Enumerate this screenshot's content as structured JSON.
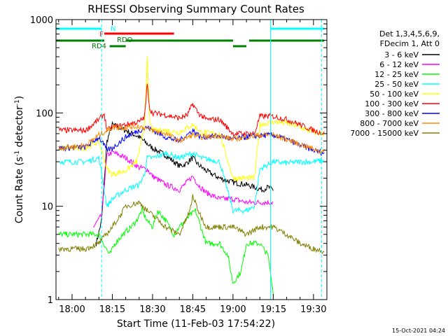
{
  "chart_data": {
    "type": "line",
    "title": "RHESSI Observing Summary Count Rates",
    "xlabel": "Start Time (11-Feb-03 17:54:22)",
    "ylabel_main": "Count Rate (s",
    "ylabel_sup1": "-1",
    "ylabel_mid": " detector",
    "ylabel_sup2": "-1",
    "ylabel_end": ")",
    "yscale": "log",
    "xlim": [
      -6,
      95
    ],
    "ylim": [
      1,
      1000
    ],
    "x_unit": "minutes after 18:00 UT",
    "x_ticks": [
      {
        "x": 0,
        "label": "18:00"
      },
      {
        "x": 15,
        "label": "18:15"
      },
      {
        "x": 30,
        "label": "18:30"
      },
      {
        "x": 45,
        "label": "18:45"
      },
      {
        "x": 60,
        "label": "19:00"
      },
      {
        "x": 75,
        "label": "19:15"
      },
      {
        "x": 90,
        "label": "19:30"
      }
    ],
    "y_ticks": [
      {
        "y": 1,
        "label": "1"
      },
      {
        "y": 10,
        "label": "10"
      },
      {
        "y": 100,
        "label": "100"
      },
      {
        "y": 1000,
        "label": "1000"
      }
    ],
    "legend_position": "right",
    "legend_header": [
      "Det 1,3,4,5,6,9,",
      "FDecim 1, Att 0"
    ],
    "series": [
      {
        "name": "3 - 6 keV",
        "color": "#000000",
        "points": [
          [
            9,
            4
          ],
          [
            11,
            7
          ],
          [
            13,
            50
          ],
          [
            15,
            75
          ],
          [
            20,
            65
          ],
          [
            25,
            55
          ],
          [
            30,
            42
          ],
          [
            35,
            35
          ],
          [
            40,
            27
          ],
          [
            42,
            28
          ],
          [
            45,
            33
          ],
          [
            47,
            28
          ],
          [
            50,
            24
          ],
          [
            55,
            20
          ],
          [
            60,
            18
          ],
          [
            65,
            17
          ],
          [
            68,
            16
          ],
          [
            71,
            15
          ],
          [
            73,
            16
          ],
          [
            75,
            15
          ]
        ]
      },
      {
        "name": "6 - 12 keV",
        "color": "#ff00ff",
        "points": [
          [
            8,
            6
          ],
          [
            11,
            8
          ],
          [
            13,
            35
          ],
          [
            15,
            38
          ],
          [
            20,
            33
          ],
          [
            25,
            26
          ],
          [
            28,
            25
          ],
          [
            30,
            21
          ],
          [
            35,
            17
          ],
          [
            40,
            15
          ],
          [
            45,
            21
          ],
          [
            47,
            17
          ],
          [
            50,
            14
          ],
          [
            55,
            12
          ],
          [
            60,
            12
          ],
          [
            65,
            11
          ],
          [
            70,
            11
          ],
          [
            75,
            11
          ]
        ]
      },
      {
        "name": "12 - 25 keV",
        "color": "#00ff00",
        "points": [
          [
            -5,
            5
          ],
          [
            5,
            5
          ],
          [
            10,
            5
          ],
          [
            14,
            3
          ],
          [
            16,
            4
          ],
          [
            19,
            5
          ],
          [
            22,
            6
          ],
          [
            24,
            7
          ],
          [
            26,
            9
          ],
          [
            28,
            7
          ],
          [
            30,
            6
          ],
          [
            32,
            9
          ],
          [
            35,
            7
          ],
          [
            38,
            5
          ],
          [
            40,
            6
          ],
          [
            44,
            8
          ],
          [
            46,
            9
          ],
          [
            48,
            6
          ],
          [
            50,
            4
          ],
          [
            55,
            4
          ],
          [
            58,
            3
          ],
          [
            60,
            1.5
          ],
          [
            63,
            2
          ],
          [
            65,
            4
          ],
          [
            70,
            4
          ],
          [
            73,
            3
          ],
          [
            75,
            1.2
          ]
        ]
      },
      {
        "name": "25 - 50 keV",
        "color": "#00ffff",
        "points": [
          [
            -5,
            30
          ],
          [
            5,
            30
          ],
          [
            10,
            33
          ],
          [
            13,
            10
          ],
          [
            15,
            12
          ],
          [
            20,
            15
          ],
          [
            25,
            17
          ],
          [
            27,
            22
          ],
          [
            28,
            33
          ],
          [
            30,
            33
          ],
          [
            35,
            37
          ],
          [
            40,
            33
          ],
          [
            45,
            37
          ],
          [
            48,
            33
          ],
          [
            55,
            30
          ],
          [
            60,
            9
          ],
          [
            65,
            9
          ],
          [
            68,
            10
          ],
          [
            70,
            25
          ],
          [
            75,
            30
          ],
          [
            80,
            29
          ],
          [
            85,
            30
          ],
          [
            90,
            30
          ],
          [
            94,
            31
          ]
        ]
      },
      {
        "name": "50 - 100 keV",
        "color": "#ffff00",
        "points": [
          [
            -5,
            42
          ],
          [
            5,
            42
          ],
          [
            10,
            50
          ],
          [
            13,
            25
          ],
          [
            15,
            22
          ],
          [
            20,
            24
          ],
          [
            24,
            30
          ],
          [
            26,
            50
          ],
          [
            27,
            80
          ],
          [
            28,
            380
          ],
          [
            29,
            80
          ],
          [
            30,
            65
          ],
          [
            35,
            65
          ],
          [
            40,
            62
          ],
          [
            45,
            75
          ],
          [
            48,
            62
          ],
          [
            55,
            60
          ],
          [
            60,
            20
          ],
          [
            65,
            20
          ],
          [
            68,
            20
          ],
          [
            70,
            75
          ],
          [
            75,
            80
          ],
          [
            80,
            78
          ],
          [
            85,
            70
          ],
          [
            90,
            62
          ],
          [
            94,
            60
          ]
        ]
      },
      {
        "name": "100 - 300 keV",
        "color": "#ff0000",
        "points": [
          [
            -5,
            65
          ],
          [
            5,
            65
          ],
          [
            10,
            85
          ],
          [
            12,
            98
          ],
          [
            13,
            65
          ],
          [
            15,
            70
          ],
          [
            20,
            75
          ],
          [
            25,
            80
          ],
          [
            27,
            90
          ],
          [
            28,
            200
          ],
          [
            29,
            110
          ],
          [
            30,
            100
          ],
          [
            35,
            95
          ],
          [
            40,
            88
          ],
          [
            43,
            95
          ],
          [
            45,
            125
          ],
          [
            47,
            100
          ],
          [
            50,
            85
          ],
          [
            55,
            85
          ],
          [
            60,
            60
          ],
          [
            65,
            60
          ],
          [
            68,
            60
          ],
          [
            70,
            92
          ],
          [
            75,
            92
          ],
          [
            80,
            85
          ],
          [
            85,
            75
          ],
          [
            90,
            65
          ],
          [
            94,
            60
          ]
        ]
      },
      {
        "name": "300 - 800 keV",
        "color": "#0000ff",
        "points": [
          [
            -5,
            42
          ],
          [
            5,
            43
          ],
          [
            10,
            55
          ],
          [
            13,
            40
          ],
          [
            15,
            42
          ],
          [
            20,
            55
          ],
          [
            25,
            65
          ],
          [
            28,
            70
          ],
          [
            30,
            65
          ],
          [
            35,
            55
          ],
          [
            40,
            50
          ],
          [
            45,
            65
          ],
          [
            48,
            55
          ],
          [
            55,
            57
          ],
          [
            60,
            52
          ],
          [
            65,
            55
          ],
          [
            70,
            57
          ],
          [
            75,
            58
          ],
          [
            80,
            52
          ],
          [
            85,
            45
          ],
          [
            90,
            40
          ],
          [
            94,
            37
          ]
        ]
      },
      {
        "name": "800 - 7000 keV",
        "color": "#ff8c00",
        "points": [
          [
            -5,
            42
          ],
          [
            5,
            45
          ],
          [
            10,
            58
          ],
          [
            15,
            70
          ],
          [
            20,
            70
          ],
          [
            25,
            72
          ],
          [
            30,
            65
          ],
          [
            35,
            60
          ],
          [
            40,
            50
          ],
          [
            45,
            58
          ],
          [
            48,
            55
          ],
          [
            55,
            57
          ],
          [
            60,
            52
          ],
          [
            65,
            55
          ],
          [
            70,
            58
          ],
          [
            75,
            58
          ],
          [
            80,
            52
          ],
          [
            85,
            46
          ],
          [
            90,
            41
          ],
          [
            94,
            38
          ]
        ]
      },
      {
        "name": "7000 - 15000 keV",
        "color": "#808000",
        "points": [
          [
            -5,
            3.5
          ],
          [
            5,
            3.5
          ],
          [
            10,
            4
          ],
          [
            15,
            6
          ],
          [
            18,
            8
          ],
          [
            20,
            10
          ],
          [
            25,
            11
          ],
          [
            28,
            9
          ],
          [
            30,
            8
          ],
          [
            35,
            6
          ],
          [
            40,
            5
          ],
          [
            44,
            9
          ],
          [
            45,
            13
          ],
          [
            47,
            9
          ],
          [
            50,
            6
          ],
          [
            55,
            6
          ],
          [
            60,
            6
          ],
          [
            65,
            5
          ],
          [
            70,
            6
          ],
          [
            75,
            6
          ],
          [
            80,
            5
          ],
          [
            85,
            4
          ],
          [
            90,
            3.5
          ],
          [
            94,
            3.3
          ]
        ]
      }
    ],
    "status_bars": [
      {
        "label": "N",
        "color": "#00ffff",
        "segments": [
          [
            -6,
            11
          ],
          [
            74,
            94
          ]
        ]
      },
      {
        "label": "F",
        "color": "#ff0000",
        "segments": [
          [
            12,
            38
          ]
        ]
      },
      {
        "label": "RDO",
        "color": "#008000",
        "segments": [
          [
            -6,
            12
          ],
          [
            20,
            60
          ],
          [
            66,
            94
          ]
        ]
      },
      {
        "label": "RD4",
        "color": "#008000",
        "segments": [
          [
            14,
            20
          ],
          [
            60,
            65
          ]
        ]
      }
    ],
    "vertical_markers": {
      "solid": [
        -6,
        74
      ],
      "dashed": [
        11,
        93
      ]
    },
    "footer_timestamp": "15-Oct-2021 04:24"
  }
}
